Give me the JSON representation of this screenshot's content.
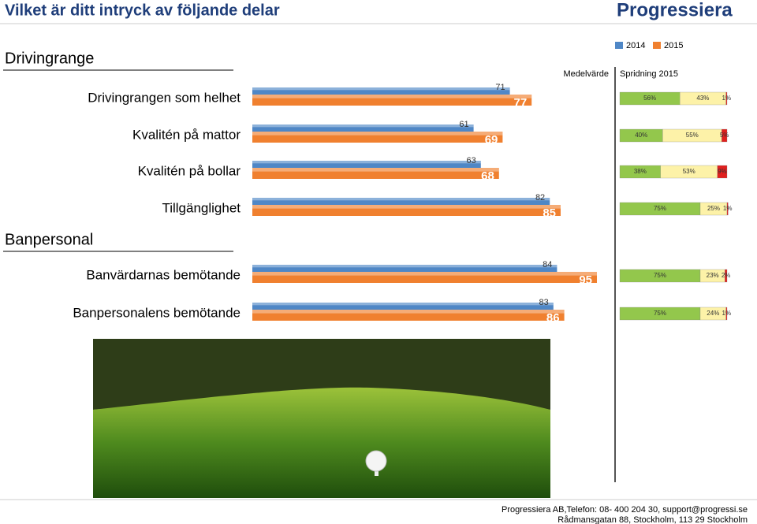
{
  "header": {
    "title": "Vilket är ditt intryck av följande delar",
    "logo": "Progressiera"
  },
  "sections": [
    "Drivingrange",
    "Banpersonal"
  ],
  "chart_data": [
    {
      "type": "bar",
      "orientation": "horizontal",
      "title": "Medelvärde",
      "categories": [
        "Drivingrangen som helhet",
        "Kvalitén på mattor",
        "Kvalitén på bollar",
        "Tillgänglighet",
        "Banvärdarnas bemötande",
        "Banpersonalens bemötande"
      ],
      "series": [
        {
          "name": "2014",
          "color": "#4f87c6",
          "values": [
            71,
            61,
            63,
            82,
            84,
            83
          ]
        },
        {
          "name": "2015",
          "color": "#f0802f",
          "values": [
            77,
            69,
            68,
            85,
            95,
            86
          ]
        }
      ],
      "xlim": [
        0,
        100
      ]
    },
    {
      "type": "stacked_bar",
      "orientation": "horizontal",
      "title": "Spridning 2015",
      "series": [
        {
          "color": "#93c74c",
          "values": [
            56,
            40,
            38,
            75,
            75,
            75
          ],
          "value_labels": [
            "56%",
            "40%",
            "38%",
            "75%",
            "75%",
            "75%"
          ]
        },
        {
          "color": "#fdf2a8",
          "values": [
            43,
            55,
            53,
            25,
            23,
            24
          ],
          "value_labels": [
            "43%",
            "55%",
            "53%",
            "25%",
            "23%",
            "24%"
          ]
        },
        {
          "color": "#e0201e",
          "values": [
            1,
            5,
            9,
            1,
            2,
            1
          ],
          "value_labels": [
            "1%",
            "5%",
            "9%",
            "1%",
            "2%",
            "1%"
          ]
        }
      ],
      "xlim": [
        0,
        100
      ]
    }
  ],
  "footer": {
    "lines": [
      "Progressiera AB,Telefon: 08-  400 204 30, support@progressi.se",
      "Rådmansgatan 88, Stockholm, 113 29 Stockholm"
    ]
  }
}
